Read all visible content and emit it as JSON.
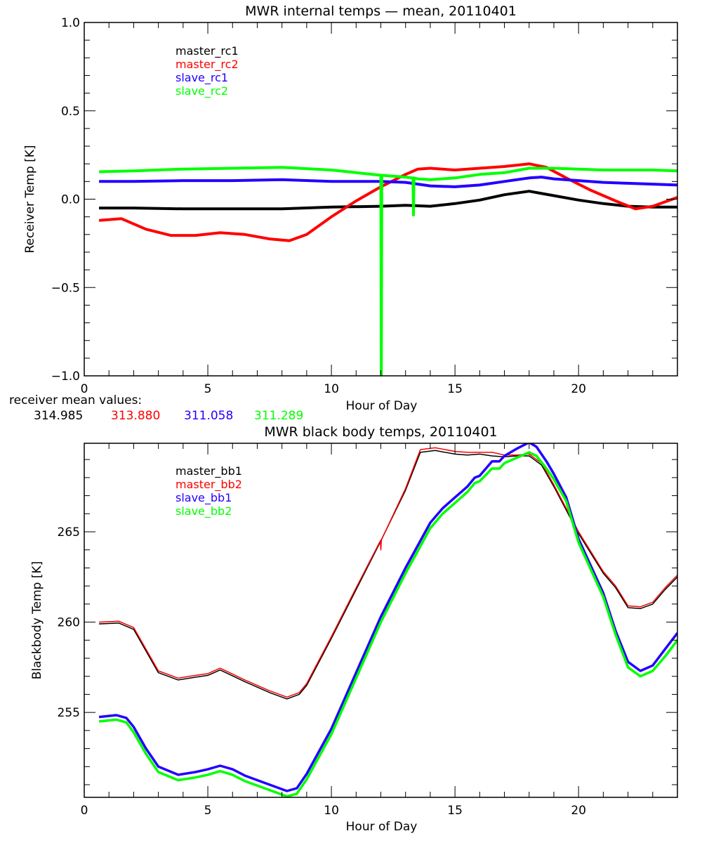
{
  "colors": {
    "black": "#000000",
    "red": "#ff0000",
    "blue": "#2200ff",
    "green": "#00ff00"
  },
  "footer": {
    "receiver_mean_label": "receiver mean values:",
    "receiver_mean_values": [
      {
        "value": "314.985",
        "color": "#000000"
      },
      {
        "value": "313.880",
        "color": "#ff0000"
      },
      {
        "value": "311.058",
        "color": "#2200ff"
      },
      {
        "value": "311.289",
        "color": "#00ff00"
      }
    ]
  },
  "chart_data": [
    {
      "type": "line",
      "title": "MWR internal temps - mean, 20110401",
      "xlabel": "Hour of Day",
      "ylabel": "Receiver Temp [K]",
      "xlim": [
        0,
        24
      ],
      "ylim": [
        -1.0,
        1.0
      ],
      "xticks": [
        0,
        5,
        10,
        15,
        20
      ],
      "xtick_labels": [
        "0",
        "5",
        "10",
        "15",
        "20"
      ],
      "yticks": [
        -1.0,
        -0.5,
        0.0,
        0.5,
        1.0
      ],
      "ytick_labels": [
        "-1.0",
        "-0.5",
        "0.0",
        "0.5",
        "1.0"
      ],
      "grid": false,
      "legend_position": "top-left",
      "series": [
        {
          "name": "master_rc1",
          "color": "#000000",
          "x": [
            0.6,
            2,
            4,
            6,
            8,
            10,
            12,
            13,
            14,
            15,
            16,
            17,
            18,
            19,
            20,
            21,
            22,
            23,
            24
          ],
          "y": [
            -0.05,
            -0.05,
            -0.055,
            -0.055,
            -0.055,
            -0.045,
            -0.04,
            -0.035,
            -0.04,
            -0.025,
            -0.005,
            0.025,
            0.045,
            0.02,
            -0.005,
            -0.025,
            -0.04,
            -0.045,
            -0.045
          ]
        },
        {
          "name": "master_rc2",
          "color": "#ff0000",
          "x": [
            0.6,
            1.5,
            2.5,
            3.5,
            4.5,
            5.5,
            6.5,
            7.5,
            8.3,
            9,
            10,
            11,
            12,
            13,
            13.5,
            14,
            15,
            16,
            17,
            18,
            18.7,
            19.5,
            20.5,
            21.5,
            22.3,
            23,
            24
          ],
          "y": [
            -0.12,
            -0.11,
            -0.17,
            -0.205,
            -0.205,
            -0.19,
            -0.2,
            -0.225,
            -0.235,
            -0.2,
            -0.1,
            -0.01,
            0.07,
            0.14,
            0.17,
            0.175,
            0.165,
            0.175,
            0.185,
            0.2,
            0.18,
            0.12,
            0.05,
            -0.01,
            -0.055,
            -0.04,
            0.01
          ]
        },
        {
          "name": "slave_rc1",
          "color": "#2200ff",
          "x": [
            0.6,
            2,
            4,
            6,
            8,
            10,
            12,
            13,
            13.5,
            14,
            15,
            16,
            17,
            18,
            18.5,
            19,
            20,
            21,
            22,
            23,
            24
          ],
          "y": [
            0.1,
            0.1,
            0.105,
            0.105,
            0.11,
            0.1,
            0.1,
            0.095,
            0.085,
            0.075,
            0.07,
            0.08,
            0.1,
            0.12,
            0.125,
            0.115,
            0.105,
            0.095,
            0.09,
            0.085,
            0.08
          ]
        },
        {
          "name": "slave_rc2",
          "color": "#00ff00",
          "x": [
            0.6,
            2,
            4,
            6,
            8,
            10,
            11,
            12,
            12.02,
            12.04,
            13,
            13.3,
            13.32,
            13.34,
            13.5,
            14,
            15,
            16,
            17,
            18,
            19,
            20,
            21,
            22,
            23,
            24
          ],
          "y": [
            0.155,
            0.16,
            0.17,
            0.175,
            0.18,
            0.165,
            0.15,
            0.135,
            -1.0,
            0.135,
            0.125,
            0.12,
            -0.09,
            0.12,
            0.115,
            0.11,
            0.12,
            0.14,
            0.15,
            0.175,
            0.175,
            0.17,
            0.165,
            0.165,
            0.165,
            0.16
          ]
        }
      ]
    },
    {
      "type": "line",
      "title": "MWR black body temps, 20110401",
      "xlabel": "Hour of Day",
      "ylabel": "Blackbody Temp [K]",
      "xlim": [
        0,
        24
      ],
      "ylim": [
        250.3,
        269.9
      ],
      "xticks": [
        0,
        5,
        10,
        15,
        20
      ],
      "xtick_labels": [
        "0",
        "5",
        "10",
        "15",
        "20"
      ],
      "yticks": [
        255,
        260,
        265
      ],
      "ytick_labels": [
        "255",
        "260",
        "265"
      ],
      "grid": false,
      "legend_position": "top-left",
      "series": [
        {
          "name": "master_bb1",
          "color": "#000000",
          "x": [
            0.6,
            1.4,
            2,
            2.5,
            3,
            3.8,
            4.5,
            5,
            5.5,
            6.5,
            7.5,
            8.2,
            8.7,
            9,
            10,
            11,
            12,
            13,
            13.6,
            14.2,
            15,
            15.5,
            16,
            16.5,
            17,
            17.5,
            18,
            18.5,
            19,
            20,
            21,
            21.5,
            22,
            22.5,
            23,
            23.5,
            24
          ],
          "y": [
            259.9,
            259.95,
            259.6,
            258.4,
            257.2,
            256.8,
            256.95,
            257.05,
            257.35,
            256.7,
            256.1,
            255.75,
            256.0,
            256.5,
            259.1,
            261.8,
            264.5,
            267.3,
            269.4,
            269.5,
            269.3,
            269.25,
            269.3,
            269.2,
            269.15,
            269.2,
            269.2,
            268.7,
            267.5,
            264.9,
            262.7,
            261.9,
            260.8,
            260.75,
            261.0,
            261.8,
            262.5
          ]
        },
        {
          "name": "master_bb2",
          "color": "#ff0000",
          "x": [
            0.6,
            1.4,
            2,
            2.5,
            3,
            3.8,
            4.5,
            5,
            5.5,
            6.5,
            7.5,
            8.2,
            8.7,
            9,
            10,
            11,
            11.98,
            12,
            12.02,
            12.04,
            13,
            13.6,
            14.2,
            15,
            15.5,
            16,
            16.5,
            17,
            17.5,
            18,
            18.5,
            19,
            20,
            21,
            21.5,
            22,
            22.5,
            23,
            23.5,
            24
          ],
          "y": [
            260.0,
            260.05,
            259.7,
            258.5,
            257.3,
            256.9,
            257.05,
            257.15,
            257.45,
            256.8,
            256.2,
            255.85,
            256.1,
            256.6,
            259.2,
            261.9,
            264.5,
            264.0,
            264.5,
            264.6,
            267.4,
            269.55,
            269.65,
            269.45,
            269.4,
            269.4,
            269.4,
            269.25,
            269.25,
            269.3,
            268.8,
            267.6,
            265.0,
            262.8,
            262.0,
            260.9,
            260.85,
            261.1,
            261.9,
            262.6
          ]
        },
        {
          "name": "slave_bb1",
          "color": "#2200ff",
          "x": [
            0.6,
            1.3,
            1.7,
            2,
            2.5,
            3,
            3.8,
            4.5,
            5,
            5.5,
            6,
            6.5,
            7.5,
            8.2,
            8.6,
            9,
            10,
            11,
            12,
            13,
            14,
            14.5,
            15,
            15.5,
            15.8,
            16,
            16.5,
            16.8,
            17,
            17.5,
            18,
            18.3,
            18.7,
            19,
            19.5,
            20,
            21,
            21.5,
            22,
            22.5,
            23,
            23.5,
            24
          ],
          "y": [
            254.75,
            254.85,
            254.7,
            254.2,
            253.0,
            252.0,
            251.55,
            251.7,
            251.85,
            252.05,
            251.85,
            251.5,
            251.0,
            250.65,
            250.8,
            251.6,
            254.1,
            257.2,
            260.3,
            263.0,
            265.5,
            266.3,
            266.9,
            267.5,
            268.0,
            268.1,
            268.9,
            268.9,
            269.2,
            269.6,
            269.95,
            269.7,
            268.9,
            268.2,
            266.9,
            264.6,
            261.6,
            259.5,
            257.8,
            257.3,
            257.6,
            258.5,
            259.4
          ]
        },
        {
          "name": "slave_bb2",
          "color": "#00ff00",
          "x": [
            0.6,
            1.3,
            1.7,
            2,
            2.5,
            3,
            3.8,
            4.5,
            5,
            5.5,
            6,
            6.5,
            7.5,
            8.2,
            8.6,
            9,
            10,
            11,
            12,
            13,
            14,
            14.5,
            15,
            15.5,
            15.8,
            16,
            16.5,
            16.8,
            17,
            17.5,
            18,
            18.3,
            18.7,
            19,
            19.5,
            20,
            21,
            21.5,
            22,
            22.5,
            23,
            23.5,
            24
          ],
          "y": [
            254.5,
            254.6,
            254.45,
            253.9,
            252.7,
            251.7,
            251.25,
            251.4,
            251.55,
            251.75,
            251.55,
            251.2,
            250.7,
            250.35,
            250.5,
            251.3,
            253.8,
            256.9,
            260.0,
            262.7,
            265.2,
            266.0,
            266.6,
            267.2,
            267.7,
            267.8,
            268.5,
            268.5,
            268.8,
            269.1,
            269.4,
            269.2,
            268.5,
            267.9,
            266.7,
            264.4,
            261.4,
            259.3,
            257.5,
            257.0,
            257.3,
            258.1,
            259.0
          ]
        }
      ]
    }
  ]
}
